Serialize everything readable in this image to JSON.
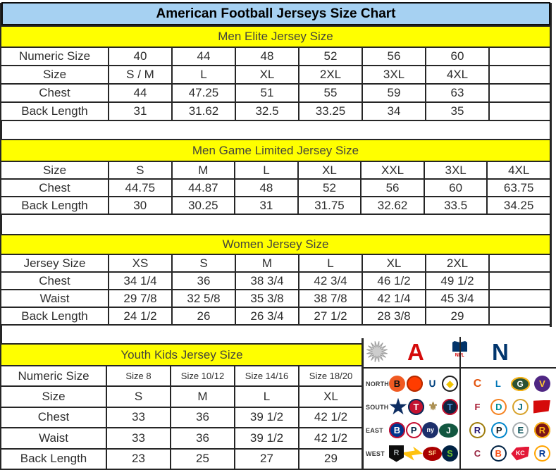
{
  "title": "American Football Jerseys Size Chart",
  "colors": {
    "title_bg": "#a6d1f2",
    "band_bg": "#ffff00",
    "border": "#262626",
    "afc_red": "#d50a0a",
    "nfc_blue": "#01356d"
  },
  "tables": [
    {
      "header": "Men Elite Jersey Size",
      "rows": [
        [
          "Numeric Size",
          "40",
          "44",
          "48",
          "52",
          "56",
          "60",
          ""
        ],
        [
          "Size",
          "S / M",
          "L",
          "XL",
          "2XL",
          "3XL",
          "4XL",
          ""
        ],
        [
          "Chest",
          "44",
          "47.25",
          "51",
          "55",
          "59",
          "63",
          ""
        ],
        [
          "Back Length",
          "31",
          "31.62",
          "32.5",
          "33.25",
          "34",
          "35",
          ""
        ]
      ]
    },
    {
      "header": "Men Game Limited Jersey Size",
      "rows": [
        [
          "Size",
          "S",
          "M",
          "L",
          "XL",
          "XXL",
          "3XL",
          "4XL"
        ],
        [
          "Chest",
          "44.75",
          "44.87",
          "48",
          "52",
          "56",
          "60",
          "63.75"
        ],
        [
          "Back Length",
          "30",
          "30.25",
          "31",
          "31.75",
          "32.62",
          "33.5",
          "34.25"
        ]
      ]
    },
    {
      "header": "Women Jersey Size",
      "rows": [
        [
          "Jersey Size",
          "XS",
          "S",
          "M",
          "L",
          "XL",
          "2XL",
          ""
        ],
        [
          "Chest",
          "34 1/4",
          "36",
          "38 3/4",
          "42 3/4",
          "46 1/2",
          "49 1/2",
          ""
        ],
        [
          "Waist",
          "29 7/8",
          "32 5/8",
          "35 3/8",
          "38 7/8",
          "42 1/4",
          "45 3/4",
          ""
        ],
        [
          "Back Length",
          "24 1/2",
          "26",
          "26 3/4",
          "27 1/2",
          "28 3/8",
          "29",
          ""
        ]
      ]
    },
    {
      "header": "Youth Kids Jersey Size",
      "small_data_row": 0,
      "rows": [
        [
          "Numeric Size",
          "Size 8",
          "Size 10/12",
          "Size 14/16",
          "Size 18/20"
        ],
        [
          "Size",
          "S",
          "M",
          "L",
          "XL"
        ],
        [
          "Chest",
          "33",
          "36",
          "39 1/2",
          "42 1/2"
        ],
        [
          "Waist",
          "33",
          "36",
          "39 1/2",
          "42 1/2"
        ],
        [
          "Back Length",
          "23",
          "25",
          "27",
          "29"
        ]
      ]
    }
  ],
  "nfl": {
    "afc_letter": "A",
    "nfc_letter": "N",
    "shield_text": "NFL",
    "divisions": [
      {
        "label": "NORTH",
        "afc": [
          {
            "n": "Bengals",
            "g": "B",
            "bg": "#f05a22",
            "fg": "#101010",
            "s": "circle"
          },
          {
            "n": "Browns",
            "g": "",
            "bg": "#ff3c00",
            "fg": "#ffffff",
            "s": "circle",
            "bd": "#b32b00"
          },
          {
            "n": "Colts",
            "g": "∪",
            "bg": "#ffffff",
            "fg": "#00417e",
            "s": "circle",
            "big": true
          },
          {
            "n": "Steelers",
            "g": "◆",
            "bg": "#ffffff",
            "fg": "#f1c400",
            "s": "circle",
            "bd": "#1c1c1c"
          }
        ],
        "nfc": [
          {
            "n": "Bears",
            "g": "C",
            "bg": "#ffffff",
            "fg": "#e3540e",
            "s": "circle",
            "big": true
          },
          {
            "n": "Lions",
            "g": "L",
            "bg": "#ffffff",
            "fg": "#0076b6",
            "s": "circle"
          },
          {
            "n": "Packers",
            "g": "G",
            "bg": "#2c5234",
            "fg": "#ffffff",
            "s": "oval",
            "bd": "#ffb612"
          },
          {
            "n": "Vikings",
            "g": "V",
            "bg": "#4f2683",
            "fg": "#ffc62f",
            "s": "circle"
          }
        ]
      },
      {
        "label": "SOUTH",
        "afc": [
          {
            "n": "Cowboys",
            "g": "",
            "bg": "#0d2d62",
            "fg": "#ffffff",
            "s": "star"
          },
          {
            "n": "Texans",
            "g": "T",
            "bg": "#c41230",
            "fg": "#ffffff",
            "s": "circle",
            "bd": "#032e5c"
          },
          {
            "n": "Saints",
            "g": "⚜",
            "bg": "#ffffff",
            "fg": "#a98d4e",
            "s": "circle",
            "big": true
          },
          {
            "n": "Titans",
            "g": "T",
            "bg": "#0c2340",
            "fg": "#4b92db",
            "s": "circle",
            "bd": "#c8102e"
          }
        ],
        "nfc": [
          {
            "n": "Falcons",
            "g": "F",
            "bg": "#ffffff",
            "fg": "#a71930",
            "s": "circle"
          },
          {
            "n": "Dolphins",
            "g": "D",
            "bg": "#ffffff",
            "fg": "#008e97",
            "s": "circle",
            "bd": "#f58220"
          },
          {
            "n": "Jaguars",
            "g": "J",
            "bg": "#ffffff",
            "fg": "#006778",
            "s": "circle",
            "bd": "#d7a22a"
          },
          {
            "n": "Buccaneers",
            "g": "",
            "bg": "#d50a0a",
            "fg": "#ffffff",
            "s": "flag"
          }
        ]
      },
      {
        "label": "EAST",
        "afc": [
          {
            "n": "Bills",
            "g": "B",
            "bg": "#00338d",
            "fg": "#ffffff",
            "s": "circle",
            "bd": "#c60c30"
          },
          {
            "n": "Patriots",
            "g": "P",
            "bg": "#ffffff",
            "fg": "#002244",
            "s": "circle",
            "bd": "#c60c30"
          },
          {
            "n": "Giants",
            "g": "ny",
            "bg": "#1c2f6b",
            "fg": "#ffffff",
            "s": "circle"
          },
          {
            "n": "Jets",
            "g": "J",
            "bg": "#125740",
            "fg": "#ffffff",
            "s": "oval"
          }
        ],
        "nfc": [
          {
            "n": "Ravens",
            "g": "R",
            "bg": "#ffffff",
            "fg": "#241773",
            "s": "circle",
            "bd": "#9e7c0c"
          },
          {
            "n": "Panthers",
            "g": "P",
            "bg": "#ffffff",
            "fg": "#101820",
            "s": "circle",
            "bd": "#0085ca"
          },
          {
            "n": "Eagles",
            "g": "E",
            "bg": "#ffffff",
            "fg": "#004c54",
            "s": "circle",
            "bd": "#a5acaf"
          },
          {
            "n": "Redskins",
            "g": "R",
            "bg": "#7c1415",
            "fg": "#ffb612",
            "s": "circle",
            "bd": "#ffb612"
          }
        ]
      },
      {
        "label": "WEST",
        "afc": [
          {
            "n": "Raiders",
            "g": "R",
            "bg": "#0d0d0d",
            "fg": "#a5acaf",
            "s": "shield"
          },
          {
            "n": "Chargers",
            "g": "",
            "bg": "#ffc20e",
            "fg": "#0080c6",
            "s": "bolt"
          },
          {
            "n": "49ers",
            "g": "SF",
            "bg": "#aa0000",
            "fg": "#ffd28c",
            "s": "oval"
          },
          {
            "n": "Seahawks",
            "g": "S",
            "bg": "#002244",
            "fg": "#69be28",
            "s": "circle"
          }
        ],
        "nfc": [
          {
            "n": "Cardinals",
            "g": "C",
            "bg": "#ffffff",
            "fg": "#97233f",
            "s": "circle"
          },
          {
            "n": "Broncos",
            "g": "B",
            "bg": "#ffffff",
            "fg": "#fb4f14",
            "s": "circle",
            "bd": "#002244"
          },
          {
            "n": "Chiefs",
            "g": "KC",
            "bg": "#e31837",
            "fg": "#ffffff",
            "s": "arrow"
          },
          {
            "n": "Rams",
            "g": "R",
            "bg": "#ffffff",
            "fg": "#003594",
            "s": "circle",
            "bd": "#ffa300"
          }
        ]
      }
    ]
  }
}
